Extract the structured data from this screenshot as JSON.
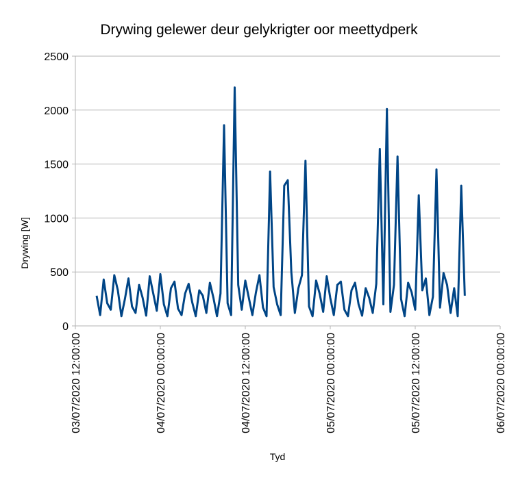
{
  "chart_data": {
    "type": "line",
    "title": "Drywing gelewer deur gelykrigter oor meettydperk",
    "x_label": "Tyd",
    "y_label": "Drywing [W]",
    "x": [
      "03/07/2020 15:00:00",
      "03/07/2020 15:30:00",
      "03/07/2020 16:00:00",
      "03/07/2020 16:30:00",
      "03/07/2020 17:00:00",
      "03/07/2020 17:30:00",
      "03/07/2020 18:00:00",
      "03/07/2020 18:30:00",
      "03/07/2020 19:00:00",
      "03/07/2020 19:30:00",
      "03/07/2020 20:00:00",
      "03/07/2020 20:30:00",
      "03/07/2020 21:00:00",
      "03/07/2020 21:30:00",
      "03/07/2020 22:00:00",
      "03/07/2020 22:30:00",
      "03/07/2020 23:00:00",
      "03/07/2020 23:30:00",
      "04/07/2020 00:00:00",
      "04/07/2020 00:30:00",
      "04/07/2020 01:00:00",
      "04/07/2020 01:30:00",
      "04/07/2020 02:00:00",
      "04/07/2020 02:30:00",
      "04/07/2020 03:00:00",
      "04/07/2020 03:30:00",
      "04/07/2020 04:00:00",
      "04/07/2020 04:30:00",
      "04/07/2020 05:00:00",
      "04/07/2020 05:30:00",
      "04/07/2020 06:00:00",
      "04/07/2020 06:30:00",
      "04/07/2020 07:00:00",
      "04/07/2020 07:30:00",
      "04/07/2020 08:00:00",
      "04/07/2020 08:30:00",
      "04/07/2020 09:00:00",
      "04/07/2020 09:30:00",
      "04/07/2020 10:00:00",
      "04/07/2020 10:30:00",
      "04/07/2020 11:00:00",
      "04/07/2020 11:30:00",
      "04/07/2020 12:00:00",
      "04/07/2020 12:30:00",
      "04/07/2020 13:00:00",
      "04/07/2020 13:30:00",
      "04/07/2020 14:00:00",
      "04/07/2020 14:30:00",
      "04/07/2020 15:00:00",
      "04/07/2020 15:30:00",
      "04/07/2020 16:00:00",
      "04/07/2020 16:30:00",
      "04/07/2020 17:00:00",
      "04/07/2020 17:30:00",
      "04/07/2020 18:00:00",
      "04/07/2020 18:30:00",
      "04/07/2020 19:00:00",
      "04/07/2020 19:30:00",
      "04/07/2020 20:00:00",
      "04/07/2020 20:30:00",
      "04/07/2020 21:00:00",
      "04/07/2020 21:30:00",
      "04/07/2020 22:00:00",
      "04/07/2020 22:30:00",
      "04/07/2020 23:00:00",
      "04/07/2020 23:30:00",
      "05/07/2020 00:00:00",
      "05/07/2020 00:30:00",
      "05/07/2020 01:00:00",
      "05/07/2020 01:30:00",
      "05/07/2020 02:00:00",
      "05/07/2020 02:30:00",
      "05/07/2020 03:00:00",
      "05/07/2020 03:30:00",
      "05/07/2020 04:00:00",
      "05/07/2020 04:30:00",
      "05/07/2020 05:00:00",
      "05/07/2020 05:30:00",
      "05/07/2020 06:00:00",
      "05/07/2020 06:30:00",
      "05/07/2020 07:00:00",
      "05/07/2020 07:30:00",
      "05/07/2020 08:00:00",
      "05/07/2020 08:30:00",
      "05/07/2020 09:00:00",
      "05/07/2020 09:30:00",
      "05/07/2020 10:00:00",
      "05/07/2020 10:30:00",
      "05/07/2020 11:00:00",
      "05/07/2020 11:30:00",
      "05/07/2020 12:00:00",
      "05/07/2020 12:30:00",
      "05/07/2020 13:00:00",
      "05/07/2020 13:30:00",
      "05/07/2020 14:00:00",
      "05/07/2020 14:30:00",
      "05/07/2020 15:00:00",
      "05/07/2020 15:30:00",
      "05/07/2020 16:00:00",
      "05/07/2020 16:30:00",
      "05/07/2020 17:00:00",
      "05/07/2020 17:30:00",
      "05/07/2020 18:00:00",
      "05/07/2020 18:30:00",
      "05/07/2020 19:00:00"
    ],
    "series": [
      {
        "color": "#004586",
        "values": [
          280,
          100,
          430,
          210,
          150,
          470,
          330,
          90,
          250,
          440,
          180,
          120,
          380,
          260,
          95,
          460,
          300,
          140,
          480,
          200,
          90,
          350,
          410,
          160,
          100,
          300,
          390,
          220,
          90,
          330,
          280,
          120,
          400,
          260,
          90,
          300,
          1860,
          210,
          100,
          2210,
          380,
          150,
          420,
          260,
          100,
          310,
          470,
          170,
          90,
          1430,
          360,
          200,
          100,
          1300,
          1350,
          500,
          120,
          350,
          470,
          1530,
          180,
          90,
          420,
          300,
          130,
          460,
          260,
          100,
          380,
          410,
          150,
          90,
          330,
          400,
          200,
          95,
          350,
          260,
          120,
          390,
          1640,
          200,
          2010,
          130,
          380,
          1570,
          250,
          90,
          400,
          310,
          150,
          1210,
          330,
          440,
          100,
          270,
          1450,
          170,
          490,
          380,
          120,
          350,
          90,
          1300,
          280
        ]
      }
    ],
    "xlim": [
      "03/07/2020 12:00:00",
      "06/07/2020 00:00:00"
    ],
    "xticks": [
      "03/07/2020 12:00:00",
      "04/07/2020 00:00:00",
      "04/07/2020 12:00:00",
      "05/07/2020 00:00:00",
      "05/07/2020 12:00:00",
      "06/07/2020 00:00:00"
    ],
    "ylim": [
      0,
      2500
    ],
    "yticks": [
      0,
      500,
      1000,
      1500,
      2000,
      2500
    ],
    "grid": true
  }
}
